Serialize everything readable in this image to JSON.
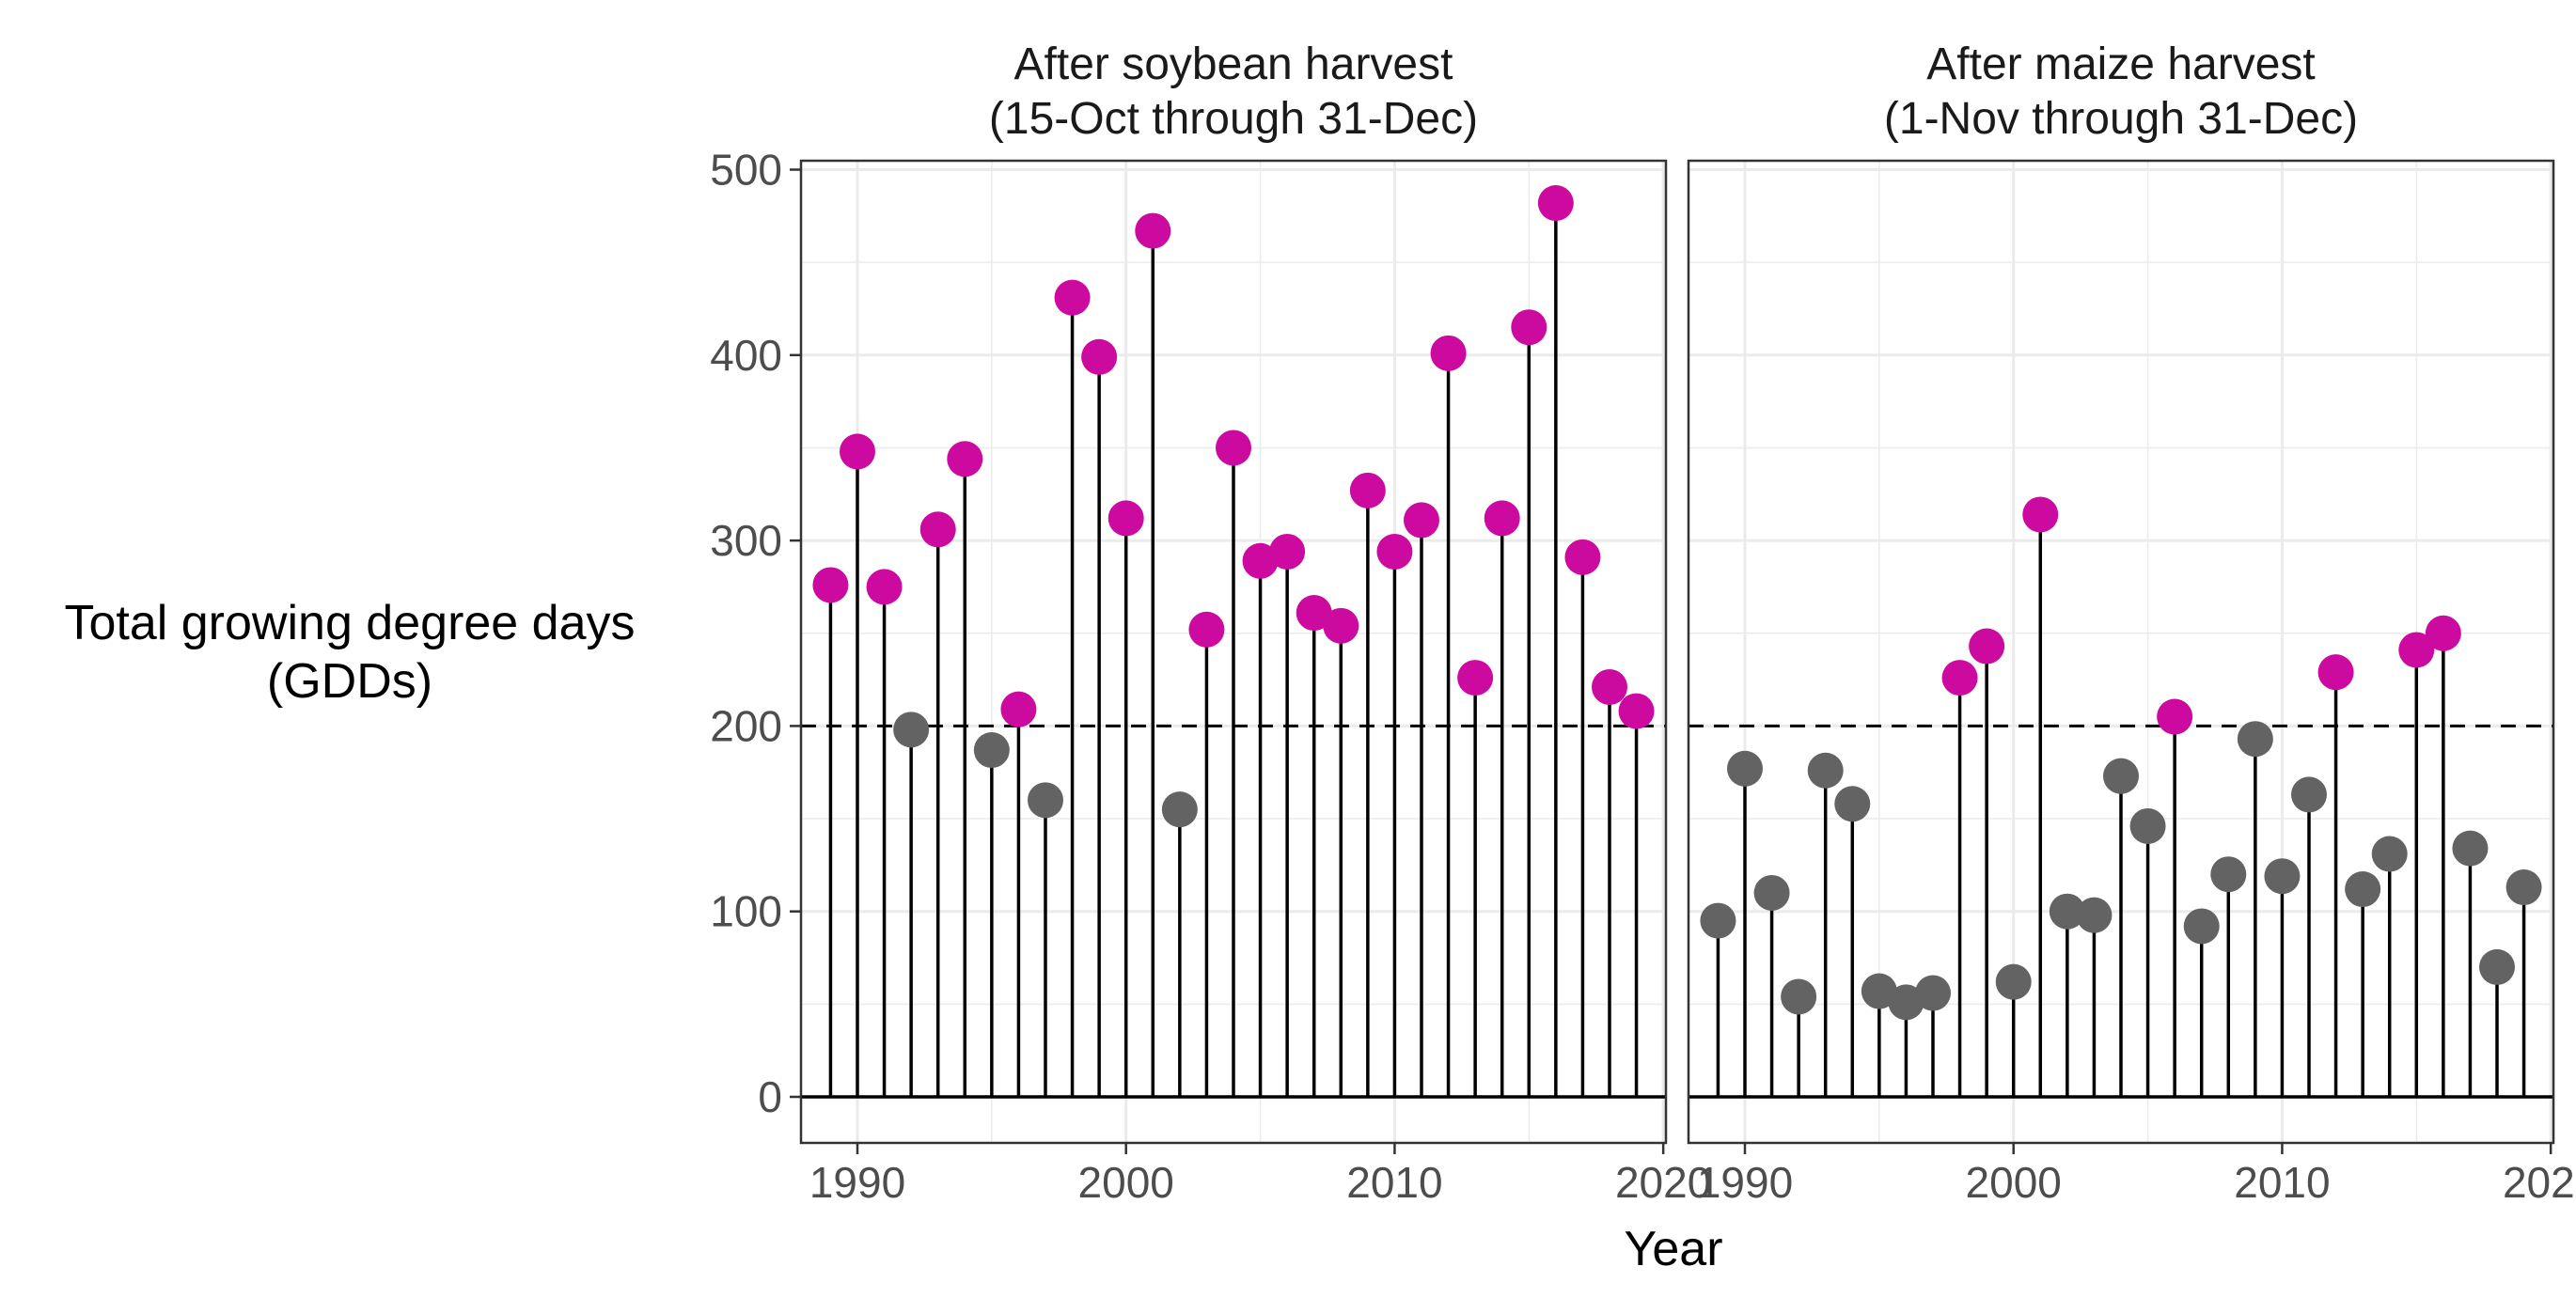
{
  "chart_data": {
    "type": "lollipop",
    "xlabel": "Year",
    "ylabel_lines": [
      "Total growing degree days",
      "(GDDs)"
    ],
    "threshold": 200,
    "colors": {
      "above_threshold": "#cc0aa0",
      "below_threshold": "#636363",
      "stem": "#000000",
      "grid": "#ebebeb",
      "border": "#333333"
    },
    "x_ticks": [
      1990,
      2000,
      2010,
      2020
    ],
    "y_ticks": [
      0,
      100,
      200,
      300,
      400,
      500
    ],
    "xlim": [
      1987.9,
      2020.1
    ],
    "ylim": [
      -24,
      500
    ],
    "grid": true,
    "panels": [
      {
        "title_lines": [
          "After soybean harvest",
          "(15-Oct through 31-Dec)"
        ],
        "points": [
          {
            "x": 1989,
            "y": 276
          },
          {
            "x": 1990,
            "y": 348
          },
          {
            "x": 1991,
            "y": 275
          },
          {
            "x": 1992,
            "y": 198
          },
          {
            "x": 1993,
            "y": 306
          },
          {
            "x": 1994,
            "y": 344
          },
          {
            "x": 1995,
            "y": 187
          },
          {
            "x": 1996,
            "y": 209
          },
          {
            "x": 1997,
            "y": 160
          },
          {
            "x": 1998,
            "y": 431
          },
          {
            "x": 1999,
            "y": 399
          },
          {
            "x": 2000,
            "y": 312
          },
          {
            "x": 2001,
            "y": 467
          },
          {
            "x": 2002,
            "y": 155
          },
          {
            "x": 2003,
            "y": 252
          },
          {
            "x": 2004,
            "y": 350
          },
          {
            "x": 2005,
            "y": 289
          },
          {
            "x": 2006,
            "y": 294
          },
          {
            "x": 2007,
            "y": 261
          },
          {
            "x": 2008,
            "y": 254
          },
          {
            "x": 2009,
            "y": 327
          },
          {
            "x": 2010,
            "y": 294
          },
          {
            "x": 2011,
            "y": 311
          },
          {
            "x": 2012,
            "y": 401
          },
          {
            "x": 2013,
            "y": 226
          },
          {
            "x": 2014,
            "y": 312
          },
          {
            "x": 2015,
            "y": 415
          },
          {
            "x": 2016,
            "y": 482
          },
          {
            "x": 2017,
            "y": 291
          },
          {
            "x": 2018,
            "y": 221
          },
          {
            "x": 2019,
            "y": 208
          }
        ]
      },
      {
        "title_lines": [
          "After maize harvest",
          "(1-Nov through 31-Dec)"
        ],
        "points": [
          {
            "x": 1989,
            "y": 95
          },
          {
            "x": 1990,
            "y": 177
          },
          {
            "x": 1991,
            "y": 110
          },
          {
            "x": 1992,
            "y": 54
          },
          {
            "x": 1993,
            "y": 176
          },
          {
            "x": 1994,
            "y": 158
          },
          {
            "x": 1995,
            "y": 57
          },
          {
            "x": 1996,
            "y": 51
          },
          {
            "x": 1997,
            "y": 56
          },
          {
            "x": 1998,
            "y": 226
          },
          {
            "x": 1999,
            "y": 243
          },
          {
            "x": 2000,
            "y": 62
          },
          {
            "x": 2001,
            "y": 314
          },
          {
            "x": 2002,
            "y": 100
          },
          {
            "x": 2003,
            "y": 98
          },
          {
            "x": 2004,
            "y": 173
          },
          {
            "x": 2005,
            "y": 146
          },
          {
            "x": 2006,
            "y": 205
          },
          {
            "x": 2007,
            "y": 92
          },
          {
            "x": 2008,
            "y": 120
          },
          {
            "x": 2009,
            "y": 193
          },
          {
            "x": 2010,
            "y": 119
          },
          {
            "x": 2011,
            "y": 163
          },
          {
            "x": 2012,
            "y": 229
          },
          {
            "x": 2013,
            "y": 112
          },
          {
            "x": 2014,
            "y": 131
          },
          {
            "x": 2015,
            "y": 241
          },
          {
            "x": 2016,
            "y": 250
          },
          {
            "x": 2017,
            "y": 134
          },
          {
            "x": 2018,
            "y": 70
          },
          {
            "x": 2019,
            "y": 113
          }
        ]
      }
    ]
  }
}
